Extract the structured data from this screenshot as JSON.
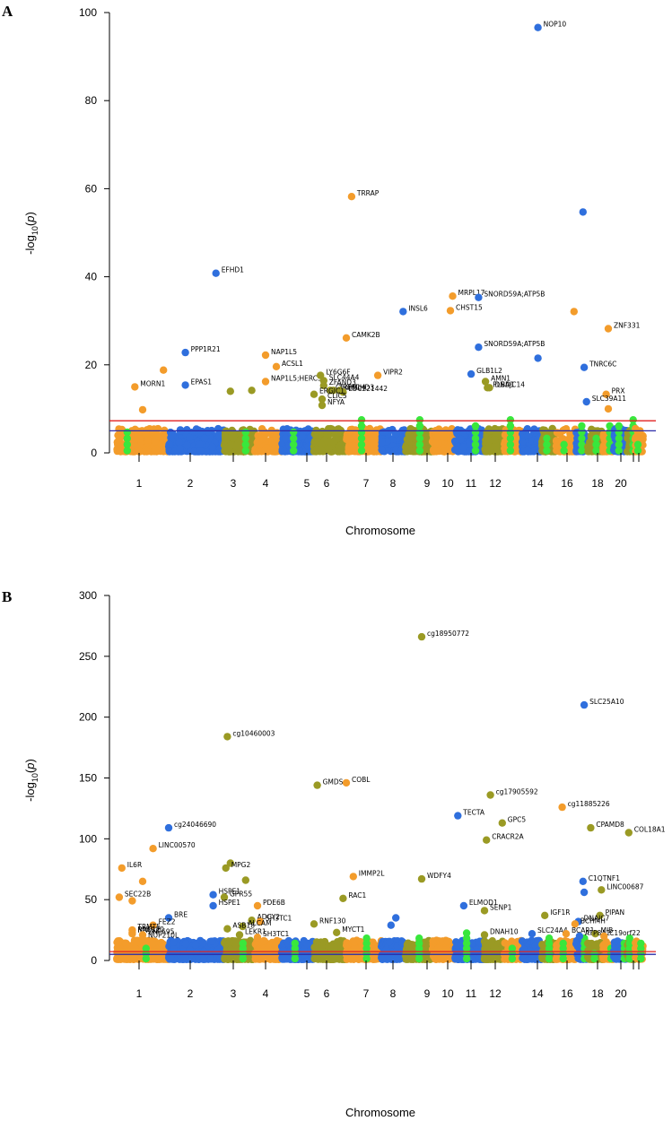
{
  "chart_data": [
    {
      "panel": "A",
      "type": "scatter",
      "title": "",
      "xlabel": "Chromosome",
      "ylabel": "-log10(p)",
      "ylim": [
        0,
        100
      ],
      "yticks": [
        0,
        20,
        40,
        60,
        80,
        100
      ],
      "chromosomes": [
        "1",
        "2",
        "3",
        "4",
        "5",
        "6",
        "7",
        "8",
        "9",
        "10",
        "11",
        "12",
        "13",
        "14",
        "15",
        "16",
        "17",
        "18",
        "19",
        "20",
        "21",
        "22"
      ],
      "chromosome_tick_labels": [
        "1",
        "2",
        "3",
        "4",
        "5",
        "6",
        "7",
        "8",
        "9",
        "10",
        "11",
        "12",
        "14",
        "16",
        "18",
        "20"
      ],
      "threshold_lines": [
        {
          "name": "suggestive",
          "value": 5.0,
          "color": "#2a2aa8"
        },
        {
          "name": "genome-wide",
          "value": 7.3,
          "color": "#e02020"
        }
      ],
      "chromosome_colors": [
        "#f39c2b",
        "#2f6fdd",
        "#9a9a24"
      ],
      "highlight_color": "#39e73c",
      "labeled_points": [
        {
          "chr": 1,
          "pos": 0.35,
          "p": 15,
          "label": "MORN1"
        },
        {
          "chr": 2,
          "pos": 0.3,
          "p": 22.8,
          "label": "PPP1R21"
        },
        {
          "chr": 2,
          "pos": 0.3,
          "p": 15.4,
          "label": "EPAS1"
        },
        {
          "chr": 2,
          "pos": 0.85,
          "p": 40.8,
          "label": "EFHD1"
        },
        {
          "chr": 4,
          "pos": 0.4,
          "p": 22.2,
          "label": "NAP1L5"
        },
        {
          "chr": 4,
          "pos": 0.4,
          "p": 16.2,
          "label": "NAP1L5;HERC3"
        },
        {
          "chr": 4,
          "pos": 0.8,
          "p": 19.6,
          "label": "ACSL1"
        },
        {
          "chr": 6,
          "pos": 0.2,
          "p": 17.6,
          "label": "LY6G6F"
        },
        {
          "chr": 6,
          "pos": 0.3,
          "p": 16.4,
          "label": "SLC44A4"
        },
        {
          "chr": 6,
          "pos": 0.3,
          "p": 15.3,
          "label": "ZFAND3"
        },
        {
          "chr": 6,
          "pos": 0.5,
          "p": 14.2,
          "label": "C6orf1"
        },
        {
          "chr": 6,
          "pos": 0.6,
          "p": 14.2,
          "label": "TREML4"
        },
        {
          "chr": 6,
          "pos": 0.8,
          "p": 14.2,
          "label": "CHCHD3"
        },
        {
          "chr": 6,
          "pos": 0.9,
          "p": 13.8,
          "label": "LOC221442"
        },
        {
          "chr": 6,
          "pos": 0.0,
          "p": 13.3,
          "label": "ERGIC1"
        },
        {
          "chr": 6,
          "pos": 0.25,
          "p": 12.2,
          "label": "CLIC5"
        },
        {
          "chr": 6,
          "pos": 0.25,
          "p": 10.8,
          "label": "NFYA"
        },
        {
          "chr": 7,
          "pos": 0.15,
          "p": 58.2,
          "label": "TRRAP"
        },
        {
          "chr": 7,
          "pos": 0.0,
          "p": 26.1,
          "label": "CAMK2B"
        },
        {
          "chr": 7,
          "pos": 0.9,
          "p": 17.6,
          "label": "VIPR2"
        },
        {
          "chr": 8,
          "pos": 0.9,
          "p": 32.1,
          "label": "INSL6"
        },
        {
          "chr": 10,
          "pos": 0.9,
          "p": 35.6,
          "label": "MRPL17"
        },
        {
          "chr": 10,
          "pos": 0.8,
          "p": 32.3,
          "label": "CHST15"
        },
        {
          "chr": 11,
          "pos": 0.8,
          "p": 35.3,
          "label": "SNORD59A;ATP5B"
        },
        {
          "chr": 11,
          "pos": 0.8,
          "p": 24.0,
          "label": "SNORD59A;ATP5B"
        },
        {
          "chr": 11,
          "pos": 0.55,
          "p": 17.9,
          "label": "GLB1L2"
        },
        {
          "chr": 12,
          "pos": 0.05,
          "p": 16.2,
          "label": "AMN1"
        },
        {
          "chr": 12,
          "pos": 0.15,
          "p": 14.8,
          "label": "PLBD1"
        },
        {
          "chr": 12,
          "pos": 0.25,
          "p": 14.8,
          "label": "DNAJC14"
        },
        {
          "chr": 14,
          "pos": 0.8,
          "p": 96.6,
          "label": "NOP10"
        },
        {
          "chr": 17,
          "pos": 0.7,
          "p": 19.4,
          "label": "TNRC6C"
        },
        {
          "chr": 19,
          "pos": 0.5,
          "p": 28.2,
          "label": "ZNF331"
        },
        {
          "chr": 19,
          "pos": 0.3,
          "p": 13.3,
          "label": "PRX"
        },
        {
          "chr": 17,
          "pos": 0.9,
          "p": 11.6,
          "label": "SLC39A11"
        }
      ],
      "unlabeled_points": [
        {
          "chr": 1,
          "pos": 0.9,
          "p": 18.8
        },
        {
          "chr": 1,
          "pos": 0.5,
          "p": 9.8
        },
        {
          "chr": 3,
          "pos": 0.2,
          "p": 14.0
        },
        {
          "chr": 3,
          "pos": 0.9,
          "p": 14.2
        },
        {
          "chr": 14,
          "pos": 0.8,
          "p": 21.5
        },
        {
          "chr": 17,
          "pos": 0.6,
          "p": 54.7
        },
        {
          "chr": 16,
          "pos": 0.9,
          "p": 32.1
        },
        {
          "chr": 19,
          "pos": 0.5,
          "p": 10.0
        }
      ]
    },
    {
      "panel": "B",
      "type": "scatter",
      "title": "",
      "xlabel": "Chromosome",
      "ylabel": "-log10(p)",
      "ylim": [
        0,
        300
      ],
      "yticks": [
        0,
        50,
        100,
        150,
        200,
        250,
        300
      ],
      "chromosomes": [
        "1",
        "2",
        "3",
        "4",
        "5",
        "6",
        "7",
        "8",
        "9",
        "10",
        "11",
        "12",
        "13",
        "14",
        "15",
        "16",
        "17",
        "18",
        "19",
        "20",
        "21",
        "22"
      ],
      "chromosome_tick_labels": [
        "1",
        "2",
        "3",
        "4",
        "5",
        "6",
        "7",
        "8",
        "9",
        "10",
        "11",
        "12",
        "14",
        "16",
        "18",
        "20"
      ],
      "threshold_lines": [
        {
          "name": "suggestive",
          "value": 5.0,
          "color": "#2a2aa8"
        },
        {
          "name": "genome-wide",
          "value": 7.3,
          "color": "#e02020"
        }
      ],
      "chromosome_colors": [
        "#f39c2b",
        "#2f6fdd",
        "#9a9a24"
      ],
      "highlight_color": "#39e73c",
      "labeled_points": [
        {
          "chr": 9,
          "pos": 0.6,
          "p": 266,
          "label": "cg18950772"
        },
        {
          "chr": 17,
          "pos": 0.7,
          "p": 210,
          "label": "SLC25A10"
        },
        {
          "chr": 3,
          "pos": 0.1,
          "p": 184,
          "label": "cg10460003"
        },
        {
          "chr": 6,
          "pos": 0.1,
          "p": 144,
          "label": "GMDS"
        },
        {
          "chr": 7,
          "pos": 0.0,
          "p": 146,
          "label": "COBL"
        },
        {
          "chr": 12,
          "pos": 0.3,
          "p": 136,
          "label": "cg17905592"
        },
        {
          "chr": 16,
          "pos": 0.3,
          "p": 126,
          "label": "cg11885226"
        },
        {
          "chr": 11,
          "pos": 0.1,
          "p": 119,
          "label": "TECTA"
        },
        {
          "chr": 12,
          "pos": 0.9,
          "p": 113,
          "label": "GPC5"
        },
        {
          "chr": 2,
          "pos": 0.0,
          "p": 109,
          "label": "cg24046690"
        },
        {
          "chr": 18,
          "pos": 0.2,
          "p": 109,
          "label": "CPAMD8"
        },
        {
          "chr": 21,
          "pos": 0.2,
          "p": 105,
          "label": "COL18A1"
        },
        {
          "chr": 12,
          "pos": 0.1,
          "p": 99,
          "label": "CRACR2A"
        },
        {
          "chr": 1,
          "pos": 0.7,
          "p": 92,
          "label": "LINC00570"
        },
        {
          "chr": 1,
          "pos": 0.1,
          "p": 76,
          "label": "IL6R"
        },
        {
          "chr": 3,
          "pos": 0.05,
          "p": 76,
          "label": "MPG2"
        },
        {
          "chr": 7,
          "pos": 0.2,
          "p": 69,
          "label": "IMMP2L"
        },
        {
          "chr": 9,
          "pos": 0.6,
          "p": 67,
          "label": "WDFY4"
        },
        {
          "chr": 17,
          "pos": 0.6,
          "p": 65,
          "label": "C1QTNF1"
        },
        {
          "chr": 18,
          "pos": 0.9,
          "p": 58,
          "label": "LINC00687"
        },
        {
          "chr": 1,
          "pos": 0.05,
          "p": 52,
          "label": "SEC22B"
        },
        {
          "chr": 2,
          "pos": 0.8,
          "p": 54,
          "label": "HSPE1"
        },
        {
          "chr": 3,
          "pos": 0.0,
          "p": 52,
          "label": "GPR55"
        },
        {
          "chr": 6,
          "pos": 0.9,
          "p": 51,
          "label": "RAC1"
        },
        {
          "chr": 2,
          "pos": 0.8,
          "p": 45,
          "label": "HSPE1"
        },
        {
          "chr": 4,
          "pos": 0.1,
          "p": 45,
          "label": "PDE6B"
        },
        {
          "chr": 11,
          "pos": 0.3,
          "p": 45,
          "label": "ELMOD1"
        },
        {
          "chr": 12,
          "pos": 0.0,
          "p": 41,
          "label": "SENP1"
        },
        {
          "chr": 15,
          "pos": 0.2,
          "p": 37,
          "label": "IGF1R"
        },
        {
          "chr": 18,
          "pos": 0.8,
          "p": 37,
          "label": "PIPAN"
        },
        {
          "chr": 2,
          "pos": 0.0,
          "p": 35,
          "label": "BRE"
        },
        {
          "chr": 3,
          "pos": 0.9,
          "p": 33,
          "label": "ADCY2"
        },
        {
          "chr": 4,
          "pos": 0.2,
          "p": 32,
          "label": "SH3TC1"
        },
        {
          "chr": 17,
          "pos": 0.2,
          "p": 32,
          "label": "DNAJC7"
        },
        {
          "chr": 16,
          "pos": 0.95,
          "p": 30,
          "label": "BCHMH"
        },
        {
          "chr": 1,
          "pos": 0.7,
          "p": 29,
          "label": "FEZ2"
        },
        {
          "chr": 3,
          "pos": 0.6,
          "p": 28,
          "label": "ALCAM"
        },
        {
          "chr": 6,
          "pos": 0.0,
          "p": 30,
          "label": "RNF130"
        },
        {
          "chr": 3,
          "pos": 0.1,
          "p": 26,
          "label": "ASB18"
        },
        {
          "chr": 1,
          "pos": 0.3,
          "p": 25,
          "label": "TRMT5"
        },
        {
          "chr": 1,
          "pos": 0.3,
          "p": 23,
          "label": "RNF220"
        },
        {
          "chr": 6,
          "pos": 0.7,
          "p": 23,
          "label": "MYCT1"
        },
        {
          "chr": 1,
          "pos": 0.3,
          "p": 22,
          "label": "NPAS2"
        },
        {
          "chr": 1,
          "pos": 0.5,
          "p": 21,
          "label": "ZNF695"
        },
        {
          "chr": 12,
          "pos": 0.0,
          "p": 21,
          "label": "DNAH10"
        },
        {
          "chr": 14,
          "pos": 0.5,
          "p": 22,
          "label": "SLC24A4"
        },
        {
          "chr": 16,
          "pos": 0.5,
          "p": 22,
          "label": "BCAR1"
        },
        {
          "chr": 18,
          "pos": 0.5,
          "p": 22,
          "label": "MIB"
        },
        {
          "chr": 3,
          "pos": 0.5,
          "p": 21,
          "label": "LEKR1"
        },
        {
          "chr": 4,
          "pos": 0.1,
          "p": 19,
          "label": "SH3TC1"
        },
        {
          "chr": 1,
          "pos": 0.5,
          "p": 18,
          "label": "NUP210L"
        },
        {
          "chr": 17,
          "pos": 0.3,
          "p": 20,
          "label": "ATP8A2"
        },
        {
          "chr": 19,
          "pos": 0.1,
          "p": 20,
          "label": "C19orf22"
        }
      ],
      "unlabeled_points": [
        {
          "chr": 3,
          "pos": 0.2,
          "p": 80
        },
        {
          "chr": 3,
          "pos": 0.7,
          "p": 66
        },
        {
          "chr": 17,
          "pos": 0.7,
          "p": 56
        },
        {
          "chr": 1,
          "pos": 0.5,
          "p": 65
        },
        {
          "chr": 8,
          "pos": 0.6,
          "p": 35
        },
        {
          "chr": 8,
          "pos": 0.4,
          "p": 29
        },
        {
          "chr": 1,
          "pos": 0.3,
          "p": 49
        }
      ]
    }
  ],
  "panels": {
    "a": {
      "label": "A",
      "xlabel": "Chromosome",
      "ylabel": "-log10(p)"
    },
    "b": {
      "label": "B",
      "xlabel": "Chromosome",
      "ylabel": "-log10(p)"
    }
  }
}
